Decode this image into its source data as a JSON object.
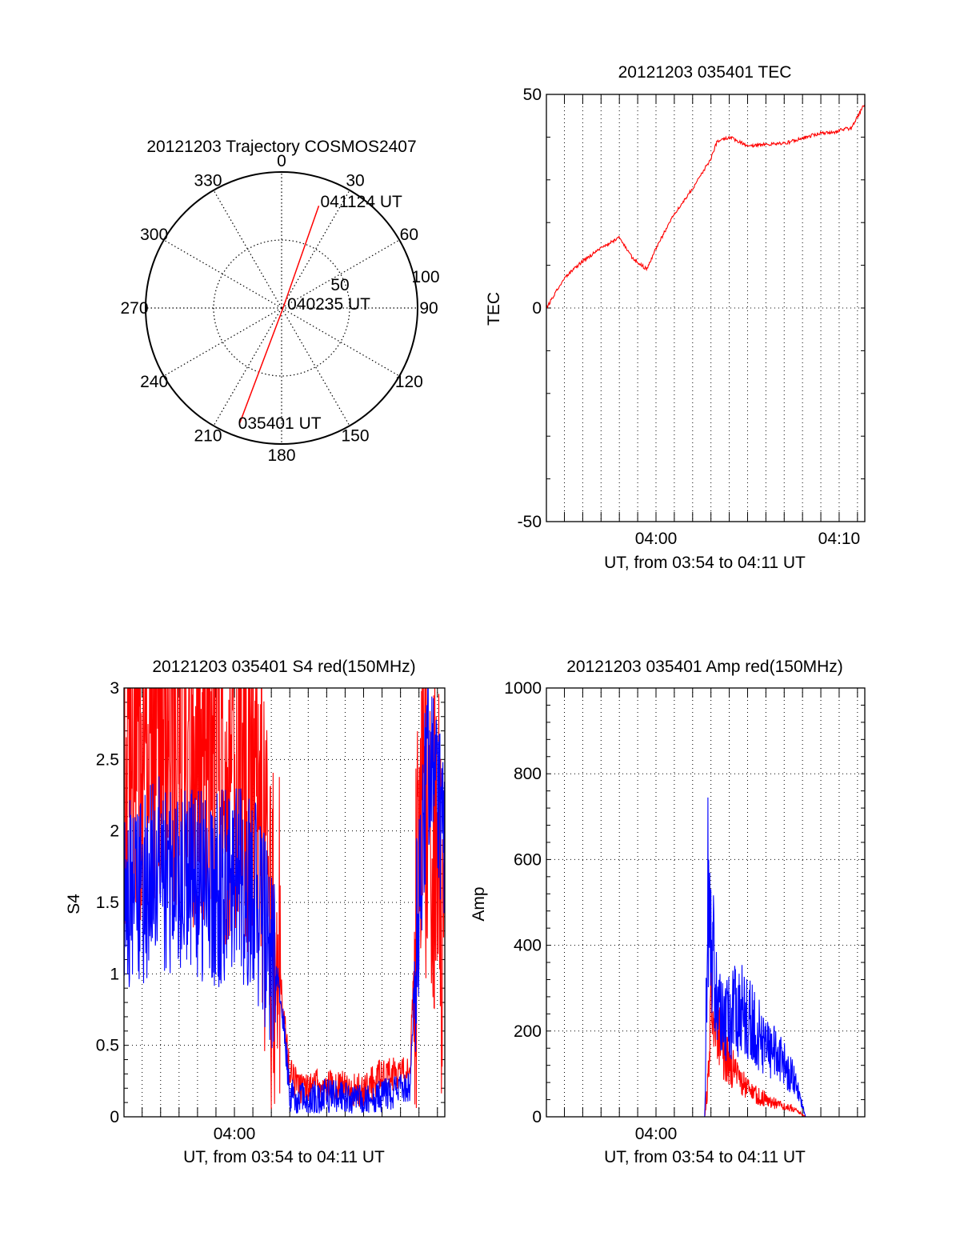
{
  "chart_data": [
    {
      "type": "polar",
      "title": "20121203 Trajectory COSMOS2407",
      "theta_ticks": [
        "0",
        "30",
        "60",
        "90",
        "120",
        "150",
        "180",
        "210",
        "240",
        "270",
        "300",
        "330"
      ],
      "radial_ticks": [
        "50",
        "100"
      ],
      "radial_range": [
        0,
        100
      ],
      "grid": true,
      "series": [
        {
          "color": "#ff0000",
          "points": [
            {
              "azimuth": 200,
              "zenith": 90
            },
            {
              "azimuth": 110,
              "zenith": 1
            },
            {
              "azimuth": 20,
              "zenith": 80
            }
          ]
        }
      ],
      "annotations": [
        {
          "text": "041124 UT",
          "azimuth": 20,
          "zenith": 80
        },
        {
          "text": "040235 UT",
          "azimuth": 90,
          "zenith": 3
        },
        {
          "text": "035401 UT",
          "azimuth": 200,
          "zenith": 90
        }
      ]
    },
    {
      "type": "line",
      "title": "20121203 035401 TEC",
      "xlabel": "UT, from 03:54 to 04:11 UT",
      "ylabel": "TEC",
      "xlim": [
        "03:54:01",
        "04:11:24"
      ],
      "ylim": [
        -50,
        50
      ],
      "yticks": [
        "50",
        "0",
        "-50"
      ],
      "xticks": [
        "04:00",
        "04:10"
      ],
      "grid": true,
      "series": [
        {
          "color": "#ff0000",
          "x": [
            "03:54:01",
            "03:55:00",
            "03:56:00",
            "03:57:00",
            "03:58:00",
            "03:58:40",
            "03:59:30",
            "04:00:00",
            "04:01:00",
            "04:02:00",
            "04:03:00",
            "04:03:20",
            "04:04:00",
            "04:05:00",
            "04:07:00",
            "04:09:00",
            "04:09:40",
            "04:10:20",
            "04:10:40",
            "04:11:24"
          ],
          "y": [
            0,
            7,
            11,
            14,
            16.5,
            12,
            9,
            14,
            22,
            28,
            35,
            39,
            40,
            38,
            38.5,
            41,
            41,
            42,
            42,
            48
          ]
        }
      ]
    },
    {
      "type": "line",
      "title": "20121203 035401 S4 red(150MHz)",
      "xlabel": "UT, from 03:54 to 04:11 UT",
      "ylabel": "S4",
      "xlim": [
        "03:54:01",
        "04:11:24"
      ],
      "ylim": [
        0,
        3
      ],
      "yticks": [
        "0",
        "0.5",
        "1",
        "1.5",
        "2",
        "2.5",
        "3"
      ],
      "xticks": [
        "04:00"
      ],
      "grid": true,
      "series": [
        {
          "color": "#ff0000",
          "x": [
            "03:54:01",
            "03:56:00",
            "03:58:00",
            "04:01:00",
            "04:02:00",
            "04:02:30",
            "04:03:00",
            "04:03:30",
            "04:05:00",
            "04:07:00",
            "04:08:00",
            "04:09:30",
            "04:09:50",
            "04:10:30",
            "04:11:24"
          ],
          "y": [
            2.7,
            2.8,
            2.7,
            2.5,
            1.3,
            1.0,
            0.3,
            0.2,
            0.22,
            0.18,
            0.3,
            0.3,
            1.3,
            2.5,
            1.3
          ]
        },
        {
          "color": "#0000ff",
          "x": [
            "03:54:01",
            "03:56:00",
            "03:58:00",
            "04:01:00",
            "04:02:00",
            "04:02:30",
            "04:03:00",
            "04:03:30",
            "04:05:00",
            "04:07:00",
            "04:08:00",
            "04:09:30",
            "04:09:50",
            "04:10:30",
            "04:11:24"
          ],
          "y": [
            1.5,
            1.7,
            1.6,
            1.6,
            1.1,
            0.9,
            0.15,
            0.12,
            0.15,
            0.1,
            0.15,
            0.2,
            1.2,
            2.6,
            1.8
          ]
        }
      ]
    },
    {
      "type": "line",
      "title": "20121203 035401 Amp red(150MHz)",
      "xlabel": "UT, from 03:54 to 04:11 UT",
      "ylabel": "Amp",
      "xlim": [
        "03:54:01",
        "04:11:24"
      ],
      "ylim": [
        0,
        1000
      ],
      "yticks": [
        "0",
        "200",
        "400",
        "600",
        "800",
        "1000"
      ],
      "xticks": [
        "04:00"
      ],
      "grid": true,
      "series": [
        {
          "color": "#ff0000",
          "x": [
            "03:54:01",
            "04:02:10",
            "04:02:40",
            "04:02:50",
            "04:03:00",
            "04:03:40",
            "04:04:40",
            "04:05:30",
            "04:06:30",
            "04:07:30",
            "04:08:10",
            "04:11:24"
          ],
          "y": [
            0,
            0,
            0,
            80,
            250,
            150,
            80,
            50,
            30,
            20,
            0,
            0
          ]
        },
        {
          "color": "#0000ff",
          "x": [
            "03:54:01",
            "04:02:10",
            "04:02:40",
            "04:02:50",
            "04:03:00",
            "04:03:40",
            "04:04:40",
            "04:05:30",
            "04:06:30",
            "04:07:30",
            "04:08:10",
            "04:11:24"
          ],
          "y": [
            0,
            0,
            0,
            550,
            400,
            220,
            260,
            200,
            150,
            90,
            0,
            0
          ]
        }
      ]
    }
  ]
}
